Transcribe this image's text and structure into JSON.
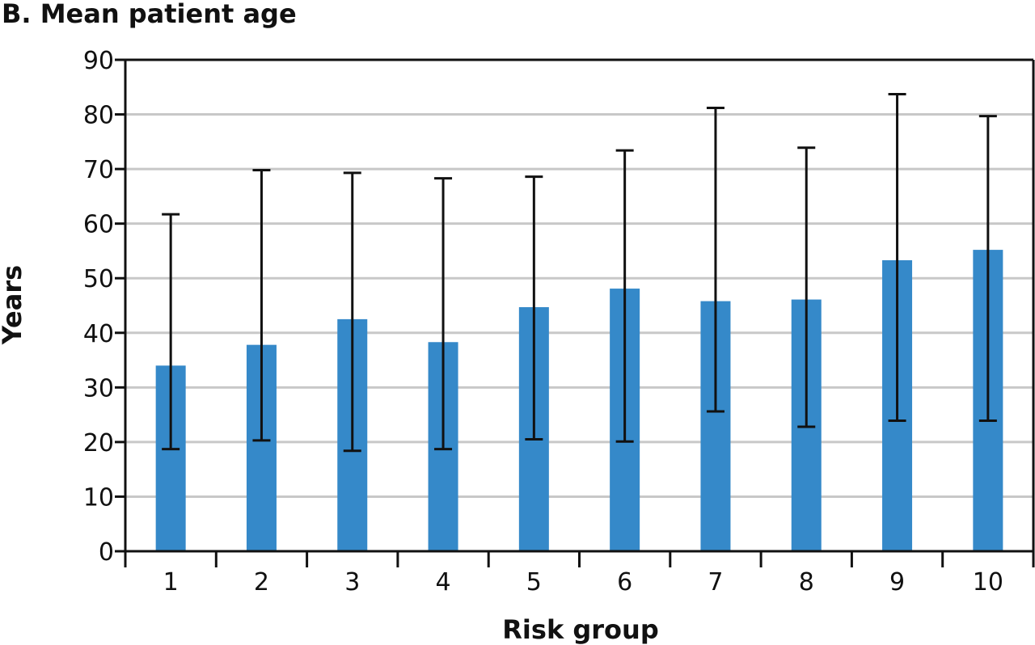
{
  "chart_data": {
    "type": "bar",
    "title": "B. Mean patient age",
    "xlabel": "Risk group",
    "ylabel": "Years",
    "categories": [
      "1",
      "2",
      "3",
      "4",
      "5",
      "6",
      "7",
      "8",
      "9",
      "10"
    ],
    "values": [
      34,
      37.8,
      42.5,
      38.3,
      44.7,
      48.1,
      45.8,
      46.1,
      53.3,
      55.2
    ],
    "error_low": [
      18.7,
      20.3,
      18.4,
      18.7,
      20.5,
      20.1,
      25.6,
      22.8,
      23.9,
      23.9
    ],
    "error_high": [
      61.7,
      69.8,
      69.3,
      68.3,
      68.6,
      73.4,
      81.2,
      73.9,
      83.7,
      79.7
    ],
    "ylim": [
      0,
      90
    ],
    "yticks": [
      0,
      10,
      20,
      30,
      40,
      50,
      60,
      70,
      80,
      90
    ],
    "grid": true,
    "legend": "none",
    "colors": {
      "bar": "#3589c9",
      "grid": "#c8c8c8",
      "axis": "#111111",
      "error_bar": "#111111"
    }
  }
}
